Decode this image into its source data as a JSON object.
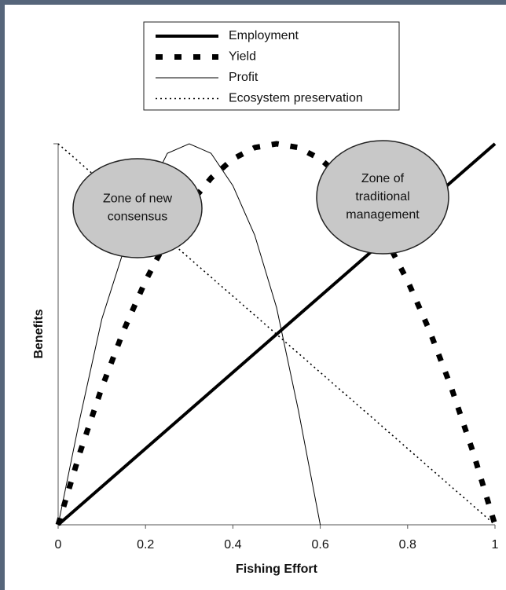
{
  "chart_data": {
    "type": "line",
    "xlabel": "Fishing Effort",
    "ylabel": "Benefits",
    "x": [
      0,
      0.05,
      0.1,
      0.15,
      0.2,
      0.25,
      0.3,
      0.35,
      0.4,
      0.45,
      0.5,
      0.55,
      0.6,
      0.65,
      0.7,
      0.75,
      0.8,
      0.85,
      0.9,
      0.95,
      1
    ],
    "xlim": [
      0,
      1
    ],
    "xticks": [
      0,
      0.2,
      0.4,
      0.6,
      0.8,
      1
    ],
    "ylim": [
      0,
      1
    ],
    "series": [
      {
        "name": "Employment",
        "color": "#000000",
        "style": "solid-thick",
        "values": [
          0,
          0.05,
          0.1,
          0.15,
          0.2,
          0.25,
          0.3,
          0.35,
          0.4,
          0.45,
          0.5,
          0.55,
          0.6,
          0.65,
          0.7,
          0.75,
          0.8,
          0.85,
          0.9,
          0.95,
          1
        ]
      },
      {
        "name": "Yield",
        "color": "#000000",
        "style": "dashed-thick",
        "values": [
          0,
          0.19,
          0.36,
          0.51,
          0.64,
          0.75,
          0.84,
          0.91,
          0.96,
          0.99,
          1,
          0.99,
          0.96,
          0.91,
          0.84,
          0.75,
          0.64,
          0.51,
          0.36,
          0.19,
          0
        ]
      },
      {
        "name": "Profit",
        "color": "#000000",
        "style": "solid-thin",
        "values": [
          0,
          0.28,
          0.54,
          0.72,
          0.86,
          0.975,
          1,
          0.975,
          0.89,
          0.76,
          0.57,
          0.3,
          0,
          null,
          null,
          null,
          null,
          null,
          null,
          null,
          null
        ]
      },
      {
        "name": "Ecosystem preservation",
        "color": "#000000",
        "style": "dotted",
        "values": [
          1,
          0.95,
          0.9,
          0.85,
          0.8,
          0.75,
          0.7,
          0.65,
          0.6,
          0.55,
          0.5,
          0.45,
          0.4,
          0.35,
          0.3,
          0.25,
          0.2,
          0.15,
          0.1,
          0.05,
          0
        ]
      }
    ],
    "annotations": [
      {
        "lines": [
          "Zone of new",
          "consensus"
        ]
      },
      {
        "lines": [
          "Zone of",
          "traditional",
          "management"
        ]
      }
    ]
  }
}
